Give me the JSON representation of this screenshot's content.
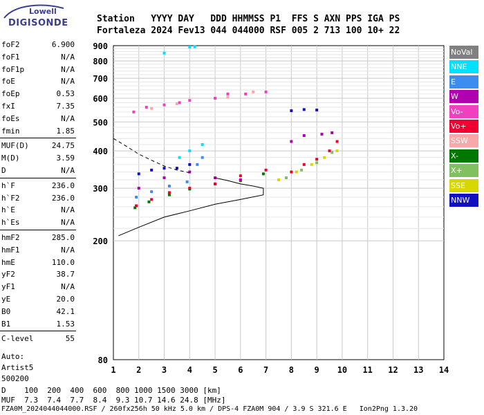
{
  "logo": {
    "brand_top": "Lowell",
    "brand_bottom": "DIGISONDE"
  },
  "header": {
    "line1": "Station   YYYY DAY   DDD HHMMSS P1  FFS S AXN PPS IGA PS",
    "line2": "Fortaleza 2024 Fev13 044 044000 RSF 005 2 713 100 10+ 22"
  },
  "params": [
    {
      "label": "foF2",
      "value": "6.900"
    },
    {
      "label": "foF1",
      "value": "N/A"
    },
    {
      "label": "foF1p",
      "value": "N/A"
    },
    {
      "label": "foE",
      "value": "N/A"
    },
    {
      "label": "foEp",
      "value": "0.53"
    },
    {
      "label": "fxI",
      "value": "7.35"
    },
    {
      "label": "foEs",
      "value": "N/A"
    },
    {
      "label": "fmin",
      "value": "1.85"
    },
    {
      "label": "MUF(D)",
      "value": "24.75"
    },
    {
      "label": "M(D)",
      "value": "3.59"
    },
    {
      "label": "D",
      "value": "N/A"
    },
    {
      "label": "h`F",
      "value": "236.0"
    },
    {
      "label": "h`F2",
      "value": "236.0"
    },
    {
      "label": "h`E",
      "value": "N/A"
    },
    {
      "label": "h`Es",
      "value": "N/A"
    },
    {
      "label": "hmF2",
      "value": "285.0"
    },
    {
      "label": "hmF1",
      "value": "N/A"
    },
    {
      "label": "hmE",
      "value": "110.0"
    },
    {
      "label": "yF2",
      "value": "38.7"
    },
    {
      "label": "yF1",
      "value": "N/A"
    },
    {
      "label": "yE",
      "value": "20.0"
    },
    {
      "label": "B0",
      "value": "42.1"
    },
    {
      "label": "B1",
      "value": "1.53"
    },
    {
      "label": "C-level",
      "value": "55"
    }
  ],
  "autoscale": {
    "line1": "Auto:",
    "line2": "Artist5",
    "line3": "500200"
  },
  "legend": [
    {
      "label": "NoVal",
      "color": "#808080"
    },
    {
      "label": "NNE",
      "color": "#00e0ff"
    },
    {
      "label": "E",
      "color": "#3d8cf0"
    },
    {
      "label": "W",
      "color": "#b000b0"
    },
    {
      "label": "Vo-",
      "color": "#f040c0"
    },
    {
      "label": "Vo+",
      "color": "#f00030"
    },
    {
      "label": "SSW",
      "color": "#f8a8a8"
    },
    {
      "label": "X-",
      "color": "#007800"
    },
    {
      "label": "X+",
      "color": "#80c060"
    },
    {
      "label": "SSE",
      "color": "#d8d800"
    },
    {
      "label": "NNW",
      "color": "#1010c0"
    }
  ],
  "bottom": {
    "d_line": "D    100  200  400  600  800 1000 1500 3000 [km]",
    "muf_line": "MUF  7.3  7.4  7.7  8.4  9.3 10.7 14.6 24.8 [MHz]",
    "file_line": "FZA0M_2024044044000.RSF / 260fx256h 50 kHz 5.0 km / DPS-4 FZA0M 904 / 3.9 S 321.6 E   Ion2Png 1.3.20"
  },
  "chart_data": {
    "type": "scatter",
    "title": "",
    "xlabel": "",
    "ylabel": "",
    "xlim": [
      1,
      14
    ],
    "ylim": [
      80,
      900
    ],
    "y_scale": "log",
    "grid": true,
    "x_ticks": [
      1,
      2,
      3,
      4,
      5,
      6,
      7,
      8,
      9,
      10,
      11,
      12,
      13,
      14
    ],
    "y_ticks": [
      80,
      200,
      300,
      400,
      500,
      600,
      700,
      800,
      900
    ],
    "series": [
      {
        "name": "X-",
        "points": [
          [
            1.85,
            258
          ],
          [
            2.4,
            270
          ],
          [
            3.2,
            285
          ],
          [
            4.0,
            298
          ],
          [
            5.0,
            310
          ],
          [
            6.0,
            318
          ],
          [
            6.9,
            335
          ]
        ]
      },
      {
        "name": "Vo+",
        "points": [
          [
            1.9,
            262
          ],
          [
            2.5,
            275
          ],
          [
            3.2,
            290
          ],
          [
            4.0,
            300
          ],
          [
            5.0,
            310
          ],
          [
            6.0,
            330
          ],
          [
            7.0,
            345
          ],
          [
            8.0,
            340
          ],
          [
            8.5,
            360
          ],
          [
            9.0,
            375
          ],
          [
            9.5,
            400
          ],
          [
            9.8,
            430
          ]
        ]
      },
      {
        "name": "E",
        "points": [
          [
            1.9,
            280
          ],
          [
            2.5,
            292
          ],
          [
            3.2,
            305
          ],
          [
            3.9,
            315
          ],
          [
            4.3,
            360
          ],
          [
            4.5,
            380
          ]
        ]
      },
      {
        "name": "W",
        "points": [
          [
            2.0,
            300
          ],
          [
            3.0,
            325
          ],
          [
            4.0,
            340
          ],
          [
            5.0,
            325
          ],
          [
            6.0,
            320
          ],
          [
            8.0,
            430
          ],
          [
            8.5,
            450
          ],
          [
            9.2,
            455
          ],
          [
            9.6,
            460
          ]
        ]
      },
      {
        "name": "Vo-",
        "points": [
          [
            1.8,
            540
          ],
          [
            2.3,
            560
          ],
          [
            3.0,
            570
          ],
          [
            3.6,
            580
          ],
          [
            4.0,
            590
          ],
          [
            5.0,
            600
          ],
          [
            5.5,
            620
          ],
          [
            6.2,
            620
          ],
          [
            7.0,
            630
          ]
        ]
      },
      {
        "name": "SSE",
        "points": [
          [
            7.5,
            320
          ],
          [
            8.2,
            340
          ],
          [
            8.8,
            360
          ],
          [
            9.3,
            380
          ],
          [
            9.8,
            400
          ]
        ]
      },
      {
        "name": "X+",
        "points": [
          [
            7.8,
            325
          ],
          [
            8.4,
            345
          ],
          [
            9.0,
            365
          ],
          [
            9.6,
            395
          ]
        ]
      },
      {
        "name": "NNW",
        "points": [
          [
            2.0,
            335
          ],
          [
            2.5,
            345
          ],
          [
            3.0,
            350
          ],
          [
            3.5,
            350
          ],
          [
            4.0,
            360
          ],
          [
            8.0,
            545
          ],
          [
            8.5,
            550
          ],
          [
            9.0,
            548
          ]
        ]
      },
      {
        "name": "NNE",
        "points": [
          [
            3.6,
            380
          ],
          [
            4.0,
            400
          ],
          [
            4.5,
            420
          ],
          [
            3.0,
            850
          ],
          [
            4.0,
            890
          ],
          [
            4.2,
            892
          ]
        ]
      },
      {
        "name": "SSW",
        "points": [
          [
            2.5,
            555
          ],
          [
            3.5,
            575
          ],
          [
            5.5,
            605
          ],
          [
            6.5,
            630
          ]
        ]
      }
    ],
    "profile": {
      "solid": [
        [
          1.2,
          208
        ],
        [
          2.0,
          222
        ],
        [
          3.0,
          240
        ],
        [
          4.0,
          252
        ],
        [
          5.0,
          265
        ],
        [
          6.0,
          275
        ],
        [
          6.9,
          285
        ],
        [
          6.9,
          300
        ],
        [
          6.5,
          305
        ],
        [
          6.0,
          310
        ],
        [
          5.5,
          318
        ],
        [
          5.0,
          325
        ]
      ],
      "dashed": [
        [
          1.0,
          440
        ],
        [
          1.5,
          415
        ],
        [
          2.0,
          390
        ],
        [
          2.5,
          372
        ],
        [
          3.0,
          356
        ],
        [
          3.5,
          345
        ],
        [
          4.0,
          338
        ]
      ]
    }
  }
}
